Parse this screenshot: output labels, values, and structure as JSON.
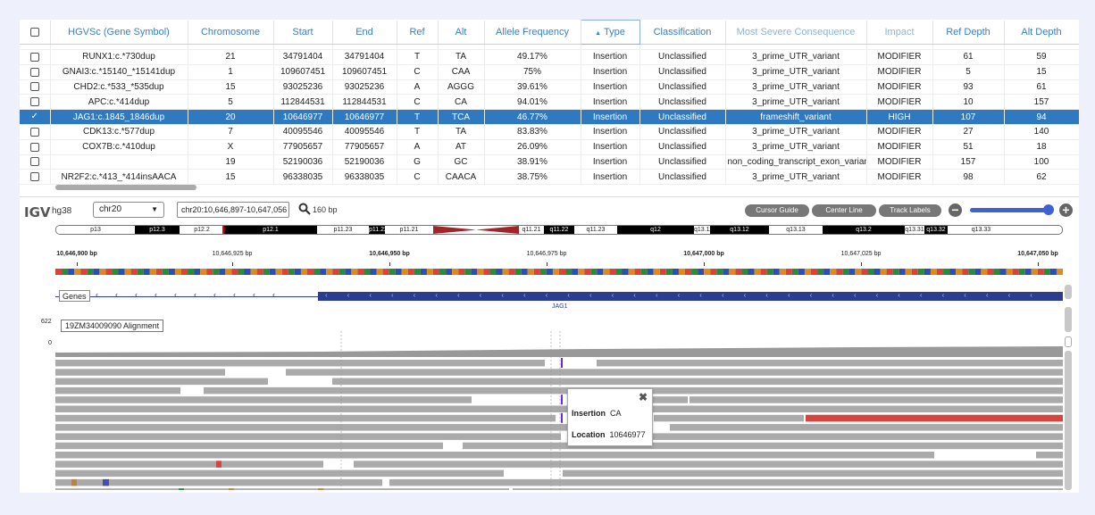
{
  "table": {
    "columns": [
      "",
      "HGVSc (Gene Symbol)",
      "Chromosome",
      "Start",
      "End",
      "Ref",
      "Alt",
      "Allele Frequency",
      "Type",
      "Classification",
      "Most Severe Consequence",
      "Impact",
      "Ref Depth",
      "Alt Depth"
    ],
    "sort_indicator": "▲",
    "rows": [
      {
        "hgvsc": "RUNX1:c.*730dup",
        "chr": "21",
        "start": "34791404",
        "end": "34791404",
        "ref": "T",
        "alt": "TA",
        "af": "49.17%",
        "type": "Insertion",
        "cls": "Unclassified",
        "cons": "3_prime_UTR_variant",
        "impact": "MODIFIER",
        "refd": "61",
        "altd": "59"
      },
      {
        "hgvsc": "GNAI3:c.*15140_*15141dup",
        "chr": "1",
        "start": "109607451",
        "end": "109607451",
        "ref": "C",
        "alt": "CAA",
        "af": "75%",
        "type": "Insertion",
        "cls": "Unclassified",
        "cons": "3_prime_UTR_variant",
        "impact": "MODIFIER",
        "refd": "5",
        "altd": "15"
      },
      {
        "hgvsc": "CHD2:c.*533_*535dup",
        "chr": "15",
        "start": "93025236",
        "end": "93025236",
        "ref": "A",
        "alt": "AGGG",
        "af": "39.61%",
        "type": "Insertion",
        "cls": "Unclassified",
        "cons": "3_prime_UTR_variant",
        "impact": "MODIFIER",
        "refd": "93",
        "altd": "61"
      },
      {
        "hgvsc": "APC:c.*414dup",
        "chr": "5",
        "start": "112844531",
        "end": "112844531",
        "ref": "C",
        "alt": "CA",
        "af": "94.01%",
        "type": "Insertion",
        "cls": "Unclassified",
        "cons": "3_prime_UTR_variant",
        "impact": "MODIFIER",
        "refd": "10",
        "altd": "157"
      },
      {
        "hgvsc": "JAG1:c.1845_1846dup",
        "chr": "20",
        "start": "10646977",
        "end": "10646977",
        "ref": "T",
        "alt": "TCA",
        "af": "46.77%",
        "type": "Insertion",
        "cls": "Unclassified",
        "cons": "frameshift_variant",
        "impact": "HIGH",
        "refd": "107",
        "altd": "94",
        "selected": true
      },
      {
        "hgvsc": "CDK13:c.*577dup",
        "chr": "7",
        "start": "40095546",
        "end": "40095546",
        "ref": "T",
        "alt": "TA",
        "af": "83.83%",
        "type": "Insertion",
        "cls": "Unclassified",
        "cons": "3_prime_UTR_variant",
        "impact": "MODIFIER",
        "refd": "27",
        "altd": "140"
      },
      {
        "hgvsc": "COX7B:c.*410dup",
        "chr": "X",
        "start": "77905657",
        "end": "77905657",
        "ref": "A",
        "alt": "AT",
        "af": "26.09%",
        "type": "Insertion",
        "cls": "Unclassified",
        "cons": "3_prime_UTR_variant",
        "impact": "MODIFIER",
        "refd": "51",
        "altd": "18"
      },
      {
        "hgvsc": "",
        "chr": "19",
        "start": "52190036",
        "end": "52190036",
        "ref": "G",
        "alt": "GC",
        "af": "38.91%",
        "type": "Insertion",
        "cls": "Unclassified",
        "cons": "non_coding_transcript_exon_variant",
        "impact": "MODIFIER",
        "refd": "157",
        "altd": "100"
      },
      {
        "hgvsc": "NR2F2:c.*413_*414insAACA",
        "chr": "15",
        "start": "96338035",
        "end": "96338035",
        "ref": "C",
        "alt": "CAACA",
        "af": "38.75%",
        "type": "Insertion",
        "cls": "Unclassified",
        "cons": "3_prime_UTR_variant",
        "impact": "MODIFIER",
        "refd": "98",
        "altd": "62"
      }
    ]
  },
  "igv": {
    "logo": "IGV",
    "genome": "hg38",
    "chromosome": "chr20",
    "locus": "chr20:10,646,897-10,647,056",
    "bp_width": "160 bp",
    "buttons": {
      "cursor_guide": "Cursor Guide",
      "center_line": "Center Line",
      "track_labels": "Track Labels",
      "zoom_out": "−",
      "zoom_in": "+"
    },
    "zoom_level": 0.95,
    "ideogram": [
      {
        "label": "p13",
        "color": "#ffffff",
        "text": "#222",
        "w": 88
      },
      {
        "label": "p12.3",
        "color": "#000000",
        "text": "#fff",
        "w": 50
      },
      {
        "label": "p12.2",
        "color": "#ffffff",
        "text": "#222",
        "w": 50
      },
      {
        "label": "p12.1",
        "color": "#000000",
        "text": "#fff",
        "w": 104
      },
      {
        "label": "p11.23",
        "color": "#ffffff",
        "text": "#222",
        "w": 58
      },
      {
        "label": "p11.22",
        "color": "#000000",
        "text": "#fff",
        "w": 18
      },
      {
        "label": "p11.21",
        "color": "#ffffff",
        "text": "#222",
        "w": 54
      },
      {
        "label": "cen",
        "color": "#a0252a",
        "text": "#a0252a",
        "w": 96
      },
      {
        "label": "q11.21",
        "color": "#ffffff",
        "text": "#222",
        "w": 28
      },
      {
        "label": "q11.22",
        "color": "#000000",
        "text": "#fff",
        "w": 34
      },
      {
        "label": "q11.23",
        "color": "#ffffff",
        "text": "#222",
        "w": 48
      },
      {
        "label": "q12",
        "color": "#000000",
        "text": "#fff",
        "w": 86
      },
      {
        "label": "q13.11",
        "color": "#ffffff",
        "text": "#222",
        "w": 18
      },
      {
        "label": "q13.12",
        "color": "#000000",
        "text": "#fff",
        "w": 66
      },
      {
        "label": "q13.13",
        "color": "#ffffff",
        "text": "#222",
        "w": 60
      },
      {
        "label": "q13.2",
        "color": "#000000",
        "text": "#fff",
        "w": 92
      },
      {
        "label": "q13.31",
        "color": "#ffffff",
        "text": "#222",
        "w": 22
      },
      {
        "label": "q13.32",
        "color": "#000000",
        "text": "#fff",
        "w": 26
      },
      {
        "label": "q13.33",
        "color": "#ffffff",
        "text": "#222",
        "w": 75
      }
    ],
    "ruler": [
      {
        "label": "10,646,900 bp",
        "bold": true
      },
      {
        "label": "10,646,925 bp",
        "bold": false
      },
      {
        "label": "10,646,950 bp",
        "bold": true
      },
      {
        "label": "10,646,975 bp",
        "bold": false
      },
      {
        "label": "10,647,000 bp",
        "bold": true
      },
      {
        "label": "10,647,025 bp",
        "bold": false
      },
      {
        "label": "10,647,050 bp",
        "bold": true
      }
    ],
    "genes_track": {
      "label": "Genes",
      "gene": "JAG1"
    },
    "alignment_track": {
      "label": "19ZM34009090 Alignment",
      "max": "622",
      "min": "0"
    },
    "tooltip": {
      "insertion_key": "Insertion",
      "insertion_val": "CA",
      "location_key": "Location",
      "location_val": "10646977",
      "close": "✖"
    },
    "colors": {
      "read": "#aaaaaa",
      "coverage": "#999999",
      "insertion": "#6a2fd1",
      "mismatch_red": "#d9433a",
      "gene": "#2a3d8f"
    }
  }
}
